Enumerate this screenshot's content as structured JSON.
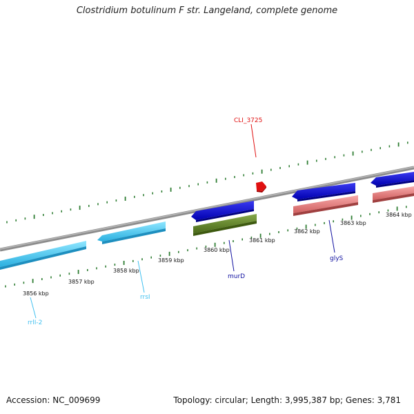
{
  "title": "Clostridium botulinum F str. Langeland, complete genome",
  "footer": {
    "accession": "Accession: NC_009699",
    "summary": "Topology: circular; Length: 3,995,387 bp; Genes: 3,781"
  },
  "colors": {
    "backbone": "#8c8c8c",
    "tick": "#2e7d32",
    "rrna": "#5fd0f5",
    "gene_forward": "#1010d8",
    "gene_reverse_pink": "#f08c8c",
    "gene_reverse_olive": "#6a8f2e",
    "highlight": "#e01010"
  },
  "axis": {
    "kbp_labels": [
      "3856 kbp",
      "3857 kbp",
      "3858 kbp",
      "3859 kbp",
      "3860 kbp",
      "3861 kbp",
      "3862 kbp",
      "3863 kbp",
      "3864 kbp"
    ]
  },
  "genes": [
    {
      "name": "rrlI-2",
      "strand": "reverse",
      "color_key": "rrna",
      "type": "rRNA"
    },
    {
      "name": "rrsI",
      "strand": "reverse",
      "color_key": "rrna",
      "type": "rRNA"
    },
    {
      "name": "",
      "strand": "forward",
      "color_key": "gene_forward"
    },
    {
      "name": "murD",
      "strand": "reverse",
      "color_key": "gene_reverse_olive"
    },
    {
      "name": "CLI_3725",
      "strand": "forward",
      "color_key": "highlight"
    },
    {
      "name": "",
      "strand": "forward",
      "color_key": "gene_forward"
    },
    {
      "name": "glyS",
      "strand": "reverse",
      "color_key": "gene_reverse_pink"
    },
    {
      "name": "",
      "strand": "forward",
      "color_key": "gene_forward"
    },
    {
      "name": "",
      "strand": "reverse",
      "color_key": "gene_reverse_pink"
    }
  ],
  "labels": {
    "cli3725": "CLI_3725",
    "murD": "murD",
    "glyS": "glyS",
    "rrsI": "rrsI",
    "rrlI2": "rrlI-2"
  }
}
